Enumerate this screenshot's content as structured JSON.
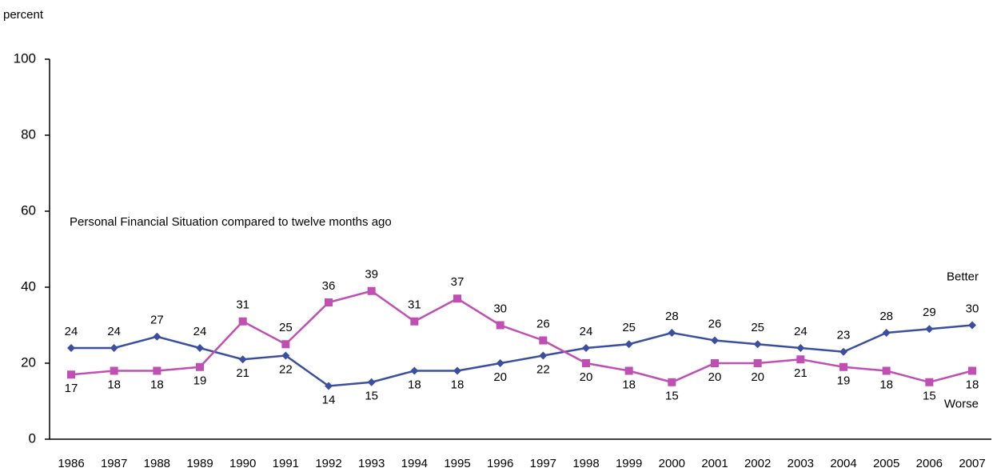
{
  "chart_data": {
    "type": "line",
    "y_label": "percent",
    "annotation": "Personal Financial Situation compared to twelve months ago",
    "categories": [
      "1986",
      "1987",
      "1988",
      "1989",
      "1990",
      "1991",
      "1992",
      "1993",
      "1994",
      "1995",
      "1996",
      "1997",
      "1998",
      "1999",
      "2000",
      "2001",
      "2002",
      "2003",
      "2004",
      "2005",
      "2006",
      "2007"
    ],
    "series": [
      {
        "name": "Better",
        "color": "#3a4fa0",
        "marker": "diamond",
        "values": [
          24,
          24,
          27,
          24,
          21,
          22,
          14,
          15,
          18,
          18,
          20,
          22,
          24,
          25,
          28,
          26,
          25,
          24,
          23,
          28,
          29,
          30
        ]
      },
      {
        "name": "Worse",
        "color": "#c04fb3",
        "marker": "square",
        "values": [
          17,
          18,
          18,
          19,
          31,
          25,
          36,
          39,
          31,
          37,
          30,
          26,
          20,
          18,
          15,
          20,
          20,
          21,
          19,
          18,
          15,
          18
        ]
      }
    ],
    "ylim": [
      0,
      100
    ],
    "yticks": [
      0,
      20,
      40,
      60,
      80,
      100
    ],
    "grid": false
  }
}
